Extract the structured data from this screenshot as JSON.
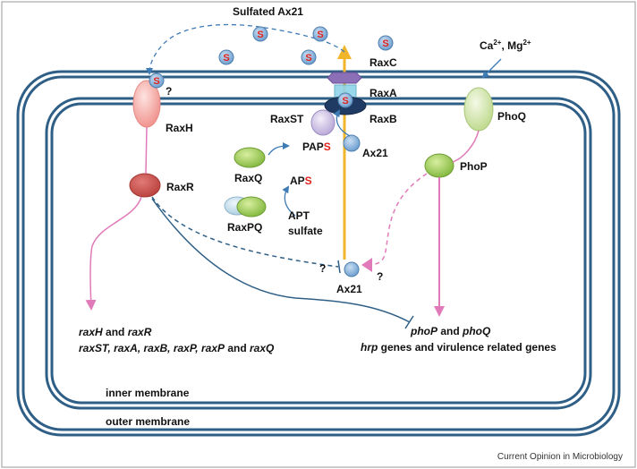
{
  "title": "Sulfated Ax21",
  "proteins": {
    "raxc": "RaxC",
    "raxa": "RaxA",
    "raxb": "RaxB",
    "raxst": "RaxST",
    "raxh": "RaxH",
    "raxr": "RaxR",
    "raxq": "RaxQ",
    "raxpq": "RaxPQ",
    "phoq": "PhoQ",
    "phop": "PhoP",
    "ax21_inner": "Ax21",
    "ax21_bottom": "Ax21"
  },
  "metabolites": {
    "paps_prefix": "PAP",
    "aps_prefix": "AP",
    "sulfur": "S",
    "apt": "APT",
    "sulfate": "sulfate"
  },
  "ions": {
    "ca": "Ca",
    "ca_sup": "2+",
    "sep": ", ",
    "mg": "Mg",
    "mg_sup": "2+"
  },
  "question": "?",
  "genes_left": {
    "line1_a": "raxH",
    "line1_and": " and ",
    "line1_b": "raxR",
    "line2": "raxST, raxA, raxB, raxP, raxP",
    "line2_and": " and ",
    "line2_end": "raxQ"
  },
  "genes_right": {
    "line1_a": "phoP",
    "line1_and": " and ",
    "line1_b": "phoQ",
    "line2_a": "hrp",
    "line2_b": " genes and virulence related genes"
  },
  "membranes": {
    "inner": "inner membrane",
    "outer": "outer membrane"
  },
  "credit": "Current Opinion in Microbiology",
  "colors": {
    "membrane": "#2f5f86",
    "arrow_blue": "#3f7bb5",
    "arrow_pink": "#e07ab8",
    "arrow_yellow": "#f0b52a",
    "sulfur_red": "#e0221a"
  }
}
